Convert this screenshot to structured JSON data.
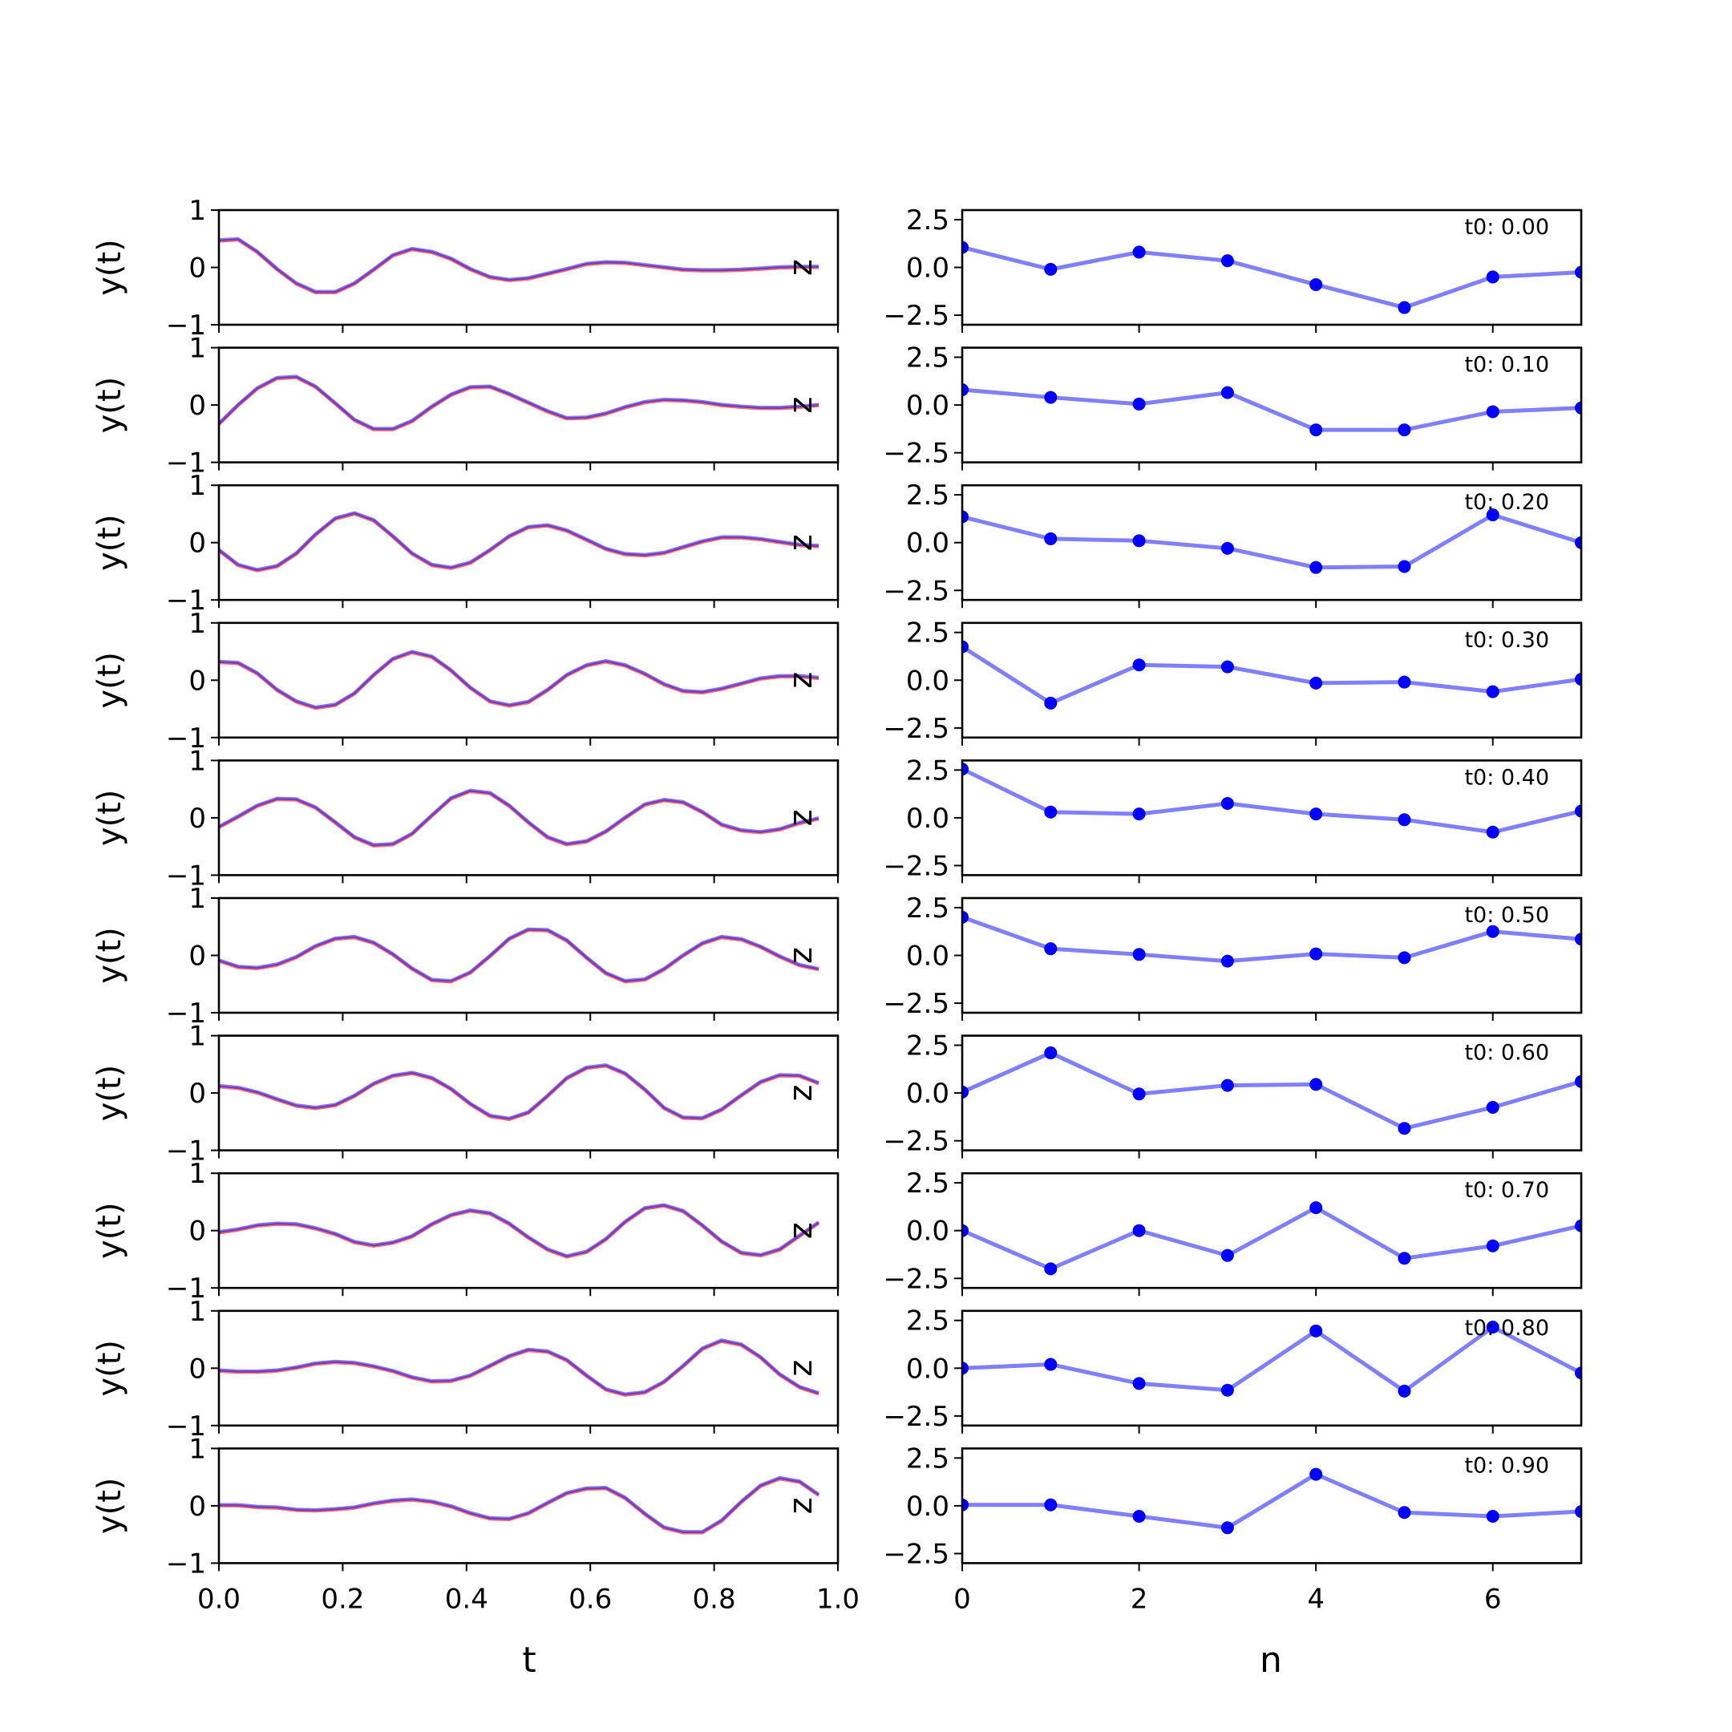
{
  "figure": {
    "left_xlabel": "t",
    "right_xlabel": "n",
    "left_ylabel": "y(t)",
    "right_ylabel": "z",
    "left_ylim": [
      -1,
      1
    ],
    "left_yticks": [
      "1",
      "0",
      "−1"
    ],
    "left_xlim": [
      0,
      1
    ],
    "left_xticks": [
      "0.0",
      "0.2",
      "0.4",
      "0.6",
      "0.8",
      "1.0"
    ],
    "right_ylim": [
      -3,
      3
    ],
    "right_yticks": [
      "2.5",
      "0.0",
      "−2.5"
    ],
    "right_xlim": [
      0,
      7
    ],
    "right_xticks": [
      "0",
      "2",
      "4",
      "6"
    ],
    "colors": {
      "signal_a": "#0000ff",
      "signal_b": "#ff0000",
      "latent": "#0000ff"
    }
  },
  "chart_data": [
    {
      "type": "line",
      "xlabel": "t",
      "ylabel": "y(t)",
      "xlim": [
        0,
        1
      ],
      "ylim": [
        -1,
        1
      ],
      "x": [
        0.0,
        0.031,
        0.062,
        0.094,
        0.125,
        0.156,
        0.188,
        0.219,
        0.25,
        0.281,
        0.312,
        0.344,
        0.375,
        0.406,
        0.438,
        0.469,
        0.5,
        0.531,
        0.562,
        0.594,
        0.625,
        0.656,
        0.688,
        0.719,
        0.75,
        0.781,
        0.812,
        0.844,
        0.875,
        0.906,
        0.938,
        0.969
      ],
      "series": [
        {
          "values": [
            0.48,
            0.5,
            0.28,
            -0.02,
            -0.27,
            -0.42,
            -0.42,
            -0.27,
            -0.03,
            0.22,
            0.33,
            0.28,
            0.16,
            -0.02,
            -0.16,
            -0.21,
            -0.18,
            -0.1,
            -0.02,
            0.07,
            0.1,
            0.09,
            0.05,
            0.01,
            -0.03,
            -0.04,
            -0.04,
            -0.03,
            -0.01,
            0.01,
            0.02,
            0.02
          ]
        },
        {
          "values": [
            -0.32,
            0.01,
            0.3,
            0.48,
            0.5,
            0.33,
            0.04,
            -0.25,
            -0.41,
            -0.41,
            -0.27,
            -0.02,
            0.19,
            0.32,
            0.33,
            0.2,
            0.05,
            -0.1,
            -0.22,
            -0.21,
            -0.14,
            -0.03,
            0.06,
            0.1,
            0.09,
            0.06,
            0.01,
            -0.02,
            -0.04,
            -0.04,
            -0.02,
            0.01
          ]
        },
        {
          "values": [
            -0.12,
            -0.38,
            -0.47,
            -0.4,
            -0.18,
            0.15,
            0.43,
            0.52,
            0.4,
            0.12,
            -0.18,
            -0.38,
            -0.43,
            -0.34,
            -0.12,
            0.12,
            0.28,
            0.31,
            0.22,
            0.06,
            -0.1,
            -0.19,
            -0.21,
            -0.17,
            -0.07,
            0.03,
            0.1,
            0.1,
            0.07,
            0.02,
            -0.03,
            -0.05
          ]
        },
        {
          "values": [
            0.33,
            0.31,
            0.13,
            -0.16,
            -0.36,
            -0.47,
            -0.42,
            -0.22,
            0.1,
            0.38,
            0.5,
            0.42,
            0.18,
            -0.12,
            -0.36,
            -0.43,
            -0.37,
            -0.16,
            0.1,
            0.27,
            0.34,
            0.27,
            0.12,
            -0.06,
            -0.18,
            -0.2,
            -0.14,
            -0.05,
            0.04,
            0.08,
            0.08,
            0.05
          ]
        },
        {
          "values": [
            -0.15,
            0.03,
            0.22,
            0.34,
            0.33,
            0.19,
            -0.07,
            -0.33,
            -0.47,
            -0.45,
            -0.27,
            0.05,
            0.35,
            0.48,
            0.44,
            0.22,
            -0.07,
            -0.33,
            -0.45,
            -0.4,
            -0.23,
            0.01,
            0.24,
            0.32,
            0.28,
            0.11,
            -0.11,
            -0.21,
            -0.24,
            -0.19,
            -0.08,
            0.0
          ]
        },
        {
          "values": [
            -0.08,
            -0.19,
            -0.21,
            -0.15,
            -0.02,
            0.17,
            0.3,
            0.33,
            0.23,
            0.03,
            -0.22,
            -0.42,
            -0.44,
            -0.29,
            0.0,
            0.3,
            0.46,
            0.45,
            0.27,
            -0.03,
            -0.3,
            -0.44,
            -0.41,
            -0.23,
            0.01,
            0.22,
            0.33,
            0.29,
            0.16,
            -0.01,
            -0.16,
            -0.23
          ]
        },
        {
          "values": [
            0.13,
            0.1,
            0.02,
            -0.1,
            -0.21,
            -0.25,
            -0.2,
            -0.04,
            0.17,
            0.31,
            0.36,
            0.27,
            0.08,
            -0.18,
            -0.39,
            -0.44,
            -0.33,
            -0.04,
            0.27,
            0.45,
            0.49,
            0.35,
            0.07,
            -0.25,
            -0.42,
            -0.43,
            -0.28,
            -0.03,
            0.2,
            0.32,
            0.31,
            0.18
          ]
        },
        {
          "values": [
            -0.02,
            0.03,
            0.1,
            0.13,
            0.12,
            0.05,
            -0.05,
            -0.19,
            -0.25,
            -0.2,
            -0.09,
            0.12,
            0.28,
            0.36,
            0.31,
            0.13,
            -0.11,
            -0.32,
            -0.44,
            -0.36,
            -0.14,
            0.16,
            0.4,
            0.45,
            0.35,
            0.1,
            -0.18,
            -0.38,
            -0.42,
            -0.32,
            -0.08,
            0.15
          ]
        },
        {
          "values": [
            -0.03,
            -0.05,
            -0.05,
            -0.03,
            0.02,
            0.09,
            0.12,
            0.1,
            0.04,
            -0.04,
            -0.15,
            -0.22,
            -0.21,
            -0.12,
            0.05,
            0.22,
            0.33,
            0.3,
            0.15,
            -0.12,
            -0.36,
            -0.45,
            -0.41,
            -0.23,
            0.05,
            0.35,
            0.49,
            0.42,
            0.2,
            -0.1,
            -0.32,
            -0.43
          ]
        },
        {
          "values": [
            0.02,
            0.02,
            -0.01,
            -0.02,
            -0.06,
            -0.07,
            -0.05,
            -0.02,
            0.05,
            0.1,
            0.12,
            0.08,
            0.0,
            -0.12,
            -0.21,
            -0.22,
            -0.12,
            0.06,
            0.23,
            0.31,
            0.32,
            0.15,
            -0.13,
            -0.37,
            -0.45,
            -0.45,
            -0.25,
            0.08,
            0.36,
            0.49,
            0.43,
            0.2
          ]
        }
      ]
    },
    {
      "type": "line",
      "xlabel": "n",
      "ylabel": "z",
      "xlim": [
        0,
        7
      ],
      "ylim": [
        -3,
        3
      ],
      "x": [
        0,
        1,
        2,
        3,
        4,
        5,
        6,
        7
      ],
      "series": [
        {
          "label": "t0: 0.00",
          "values": [
            1.05,
            -0.1,
            0.8,
            0.35,
            -0.9,
            -2.1,
            -0.5,
            -0.25
          ]
        },
        {
          "label": "t0: 0.10",
          "values": [
            0.8,
            0.4,
            0.05,
            0.65,
            -1.3,
            -1.3,
            -0.35,
            -0.15
          ]
        },
        {
          "label": "t0: 0.20",
          "values": [
            1.35,
            0.2,
            0.1,
            -0.3,
            -1.3,
            -1.25,
            1.45,
            0.0
          ]
        },
        {
          "label": "t0: 0.30",
          "values": [
            1.75,
            -1.2,
            0.8,
            0.7,
            -0.15,
            -0.1,
            -0.6,
            0.05
          ]
        },
        {
          "label": "t0: 0.40",
          "values": [
            2.55,
            0.3,
            0.2,
            0.75,
            0.2,
            -0.1,
            -0.75,
            0.35
          ]
        },
        {
          "label": "t0: 0.50",
          "values": [
            2.0,
            0.35,
            0.05,
            -0.3,
            0.08,
            -0.12,
            1.25,
            0.85
          ]
        },
        {
          "label": "t0: 0.60",
          "values": [
            0.05,
            2.1,
            -0.05,
            0.4,
            0.45,
            -1.85,
            -0.75,
            0.6
          ]
        },
        {
          "label": "t0: 0.70",
          "values": [
            0.0,
            -2.0,
            0.0,
            -1.3,
            1.2,
            -1.45,
            -0.8,
            0.25
          ]
        },
        {
          "label": "t0: 0.80",
          "values": [
            0.0,
            0.2,
            -0.8,
            -1.15,
            1.95,
            -1.2,
            2.15,
            -0.25
          ]
        },
        {
          "label": "t0: 0.90",
          "values": [
            0.05,
            0.05,
            -0.55,
            -1.15,
            1.65,
            -0.35,
            -0.55,
            -0.3
          ]
        }
      ]
    }
  ]
}
